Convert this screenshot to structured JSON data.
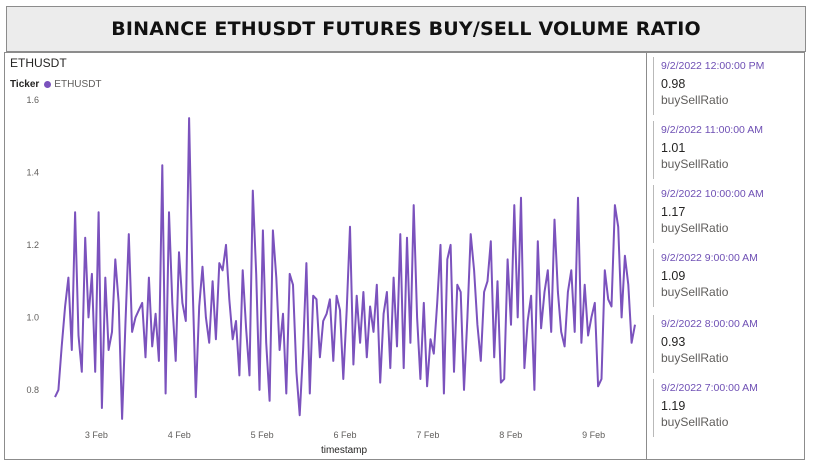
{
  "title": "BINANCE ETHUSDT FUTURES BUY/SELL VOLUME RATIO",
  "chart_data": {
    "type": "line",
    "title": "ETHUSDT",
    "legend_title": "Ticker",
    "xlabel": "timestamp",
    "ylabel": "",
    "x_ticks": [
      "3 Feb",
      "4 Feb",
      "5 Feb",
      "6 Feb",
      "7 Feb",
      "8 Feb",
      "9 Feb"
    ],
    "x_range": [
      "2 Feb 2022 12:00",
      "9 Feb 2022 12:00"
    ],
    "ylim": [
      0.75,
      1.6
    ],
    "y_ticks": [
      0.8,
      1.0,
      1.2,
      1.4,
      1.6
    ],
    "y_tick_labels": [
      "0.8",
      "1.0",
      "1.2",
      "1.4",
      "1.6"
    ],
    "grid": false,
    "legend_position": "top-left",
    "color": "#7b52bd",
    "series": [
      {
        "name": "ETHUSDT",
        "values": [
          0.78,
          0.8,
          0.92,
          1.03,
          1.11,
          0.91,
          1.29,
          0.95,
          0.85,
          1.22,
          1.0,
          1.12,
          0.85,
          1.29,
          0.75,
          1.11,
          0.91,
          0.96,
          1.16,
          1.04,
          0.72,
          0.98,
          1.23,
          0.96,
          1.0,
          1.02,
          1.04,
          0.89,
          1.11,
          0.92,
          1.01,
          0.88,
          1.42,
          0.79,
          1.29,
          1.04,
          0.88,
          1.18,
          1.04,
          0.99,
          1.55,
          1.1,
          0.78,
          1.03,
          1.14,
          1.0,
          0.93,
          1.1,
          0.94,
          1.15,
          1.13,
          1.2,
          1.05,
          0.94,
          0.99,
          0.84,
          1.13,
          0.97,
          0.84,
          1.35,
          1.12,
          0.8,
          1.24,
          0.93,
          0.77,
          1.24,
          1.11,
          0.91,
          1.01,
          0.79,
          1.12,
          1.09,
          0.85,
          0.73,
          0.91,
          1.15,
          0.79,
          1.06,
          1.05,
          0.89,
          0.99,
          1.01,
          1.05,
          0.88,
          1.06,
          1.02,
          0.83,
          1.02,
          1.25,
          0.87,
          1.06,
          0.93,
          1.07,
          0.89,
          1.03,
          0.96,
          1.09,
          0.82,
          1.01,
          1.07,
          0.86,
          1.11,
          0.92,
          1.23,
          0.86,
          1.22,
          0.93,
          1.31,
          1.0,
          0.83,
          1.04,
          0.81,
          0.94,
          0.9,
          1.04,
          1.2,
          0.79,
          1.16,
          1.2,
          0.85,
          1.09,
          1.07,
          0.8,
          1.0,
          1.23,
          1.13,
          0.98,
          0.88,
          1.07,
          1.1,
          1.21,
          0.89,
          1.1,
          0.82,
          0.83,
          1.16,
          0.98,
          1.31,
          1.0,
          1.33,
          0.86,
          0.99,
          1.06,
          0.8,
          1.21,
          0.97,
          1.07,
          1.13,
          0.96,
          1.27,
          1.07,
          0.96,
          0.92,
          1.07,
          1.13,
          0.96,
          1.33,
          0.93,
          1.09,
          0.95,
          1.0,
          1.04,
          0.81,
          0.83,
          1.13,
          1.05,
          1.03,
          1.31,
          1.25,
          1.0,
          1.17,
          1.09,
          0.93,
          0.98
        ]
      }
    ]
  },
  "cards": [
    {
      "time": "9/2/2022 12:00:00 PM",
      "value": "0.98",
      "label": "buySellRatio"
    },
    {
      "time": "9/2/2022 11:00:00 AM",
      "value": "1.01",
      "label": "buySellRatio"
    },
    {
      "time": "9/2/2022 10:00:00 AM",
      "value": "1.17",
      "label": "buySellRatio"
    },
    {
      "time": "9/2/2022 9:00:00 AM",
      "value": "1.09",
      "label": "buySellRatio"
    },
    {
      "time": "9/2/2022 8:00:00 AM",
      "value": "0.93",
      "label": "buySellRatio"
    },
    {
      "time": "9/2/2022 7:00:00 AM",
      "value": "1.19",
      "label": "buySellRatio"
    }
  ]
}
